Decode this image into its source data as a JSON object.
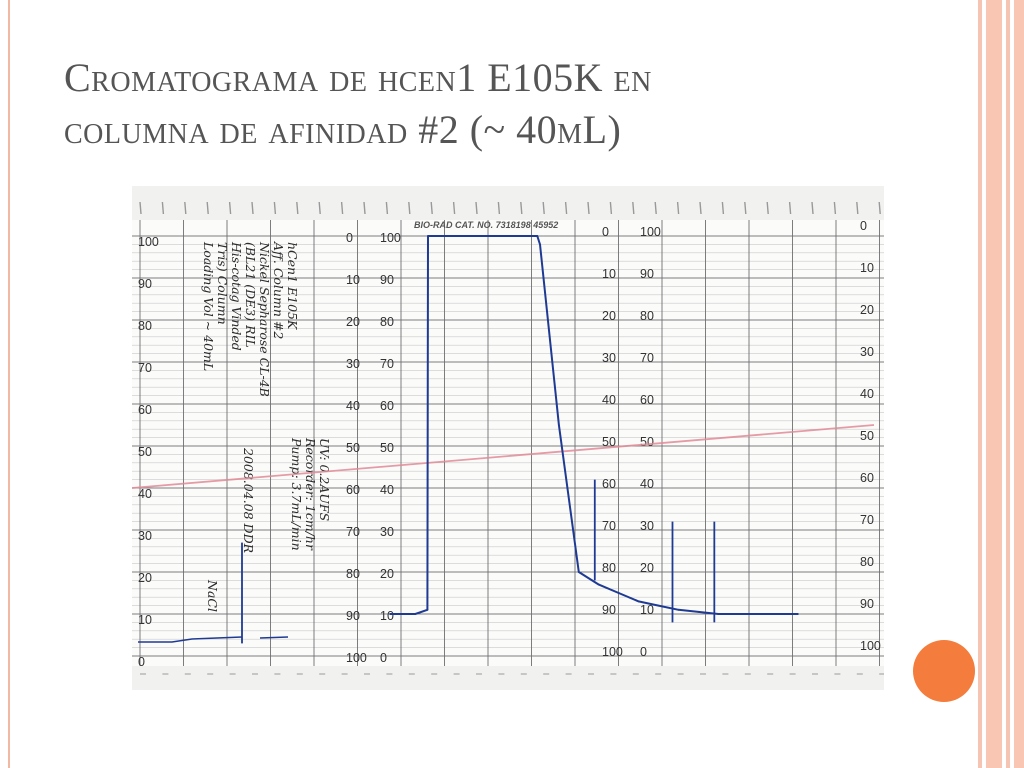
{
  "slide": {
    "title_line1": "Cromatograma de hcen1 E105K en",
    "title_line2": "columna de afinidad #2 (~ 40mL)",
    "accent_color": "#f47c3c",
    "band_color": "#f8c6b2"
  },
  "chart_data": {
    "type": "line",
    "title": "",
    "xlabel": "",
    "ylabel": "",
    "paper_header": "BIO-RAD CAT. NO. 7318198   45952",
    "y_scales": {
      "percent_ticks": [
        "100",
        "90",
        "80",
        "70",
        "60",
        "50",
        "40",
        "30",
        "20",
        "10",
        "0"
      ],
      "inverse_ticks": [
        "0",
        "10",
        "20",
        "30",
        "40",
        "50",
        "60",
        "70",
        "80",
        "90",
        "100"
      ]
    },
    "ylim": [
      0,
      100
    ],
    "grid": true,
    "handwritten_notes": [
      "hCen1 E105K",
      "Aff. Column #2",
      "Nickel Sepharose CL-4B",
      "(BL21 (DE3) RIL",
      "His-cotag Vinded",
      "Tris) Column",
      "Loading Vol ~ 40mL",
      "UV: 0.2AUFS",
      "Recorder: 1cm/hr",
      "Pump: 3.7mL/min",
      "2008.04.08 DDR",
      "NaCl"
    ],
    "series": [
      {
        "name": "",
        "color": "#1f3a93",
        "x": [
          0,
          1,
          2,
          3,
          4,
          5.9,
          6,
          6.05,
          6.5,
          7,
          8,
          8.05,
          9,
          10,
          11,
          12,
          13,
          14,
          15,
          16,
          17,
          18,
          19,
          20,
          21
        ],
        "values": [
          10,
          10,
          10,
          10,
          10,
          11,
          100,
          100,
          100,
          100,
          100,
          98,
          55,
          20,
          17,
          15,
          13,
          12,
          11,
          10.5,
          10,
          10,
          10,
          10,
          10
        ]
      },
      {
        "name": "",
        "color": "#e08a96",
        "x": [
          0,
          21
        ],
        "values": [
          40,
          55
        ]
      }
    ],
    "event_marks": [
      {
        "x": 2.5,
        "value": 3,
        "label": ""
      },
      {
        "x": 10.8,
        "value": 18,
        "label": ""
      },
      {
        "x": 14.7,
        "value": 8,
        "label": ""
      },
      {
        "x": 16.8,
        "value": 8,
        "label": ""
      }
    ]
  }
}
